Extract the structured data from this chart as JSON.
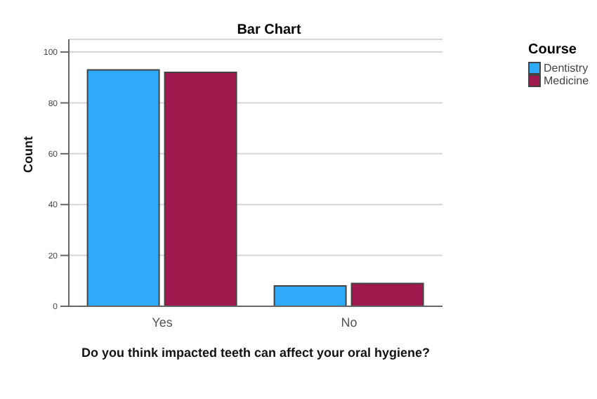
{
  "chart_data": {
    "type": "bar",
    "title": "Bar Chart",
    "xlabel": "Do you think impacted teeth can affect your oral hygiene?",
    "ylabel": "Count",
    "legend_title": "Course",
    "categories": [
      "Yes",
      "No"
    ],
    "series": [
      {
        "name": "Dentistry",
        "color": "#2eaaf8",
        "values": [
          93,
          8
        ]
      },
      {
        "name": "Medicine",
        "color": "#a0194d",
        "values": [
          92,
          9
        ]
      }
    ],
    "ylim": [
      0,
      105
    ],
    "yticks": [
      0,
      20,
      40,
      60,
      80,
      100
    ],
    "grid": "y",
    "legend": "top right"
  }
}
